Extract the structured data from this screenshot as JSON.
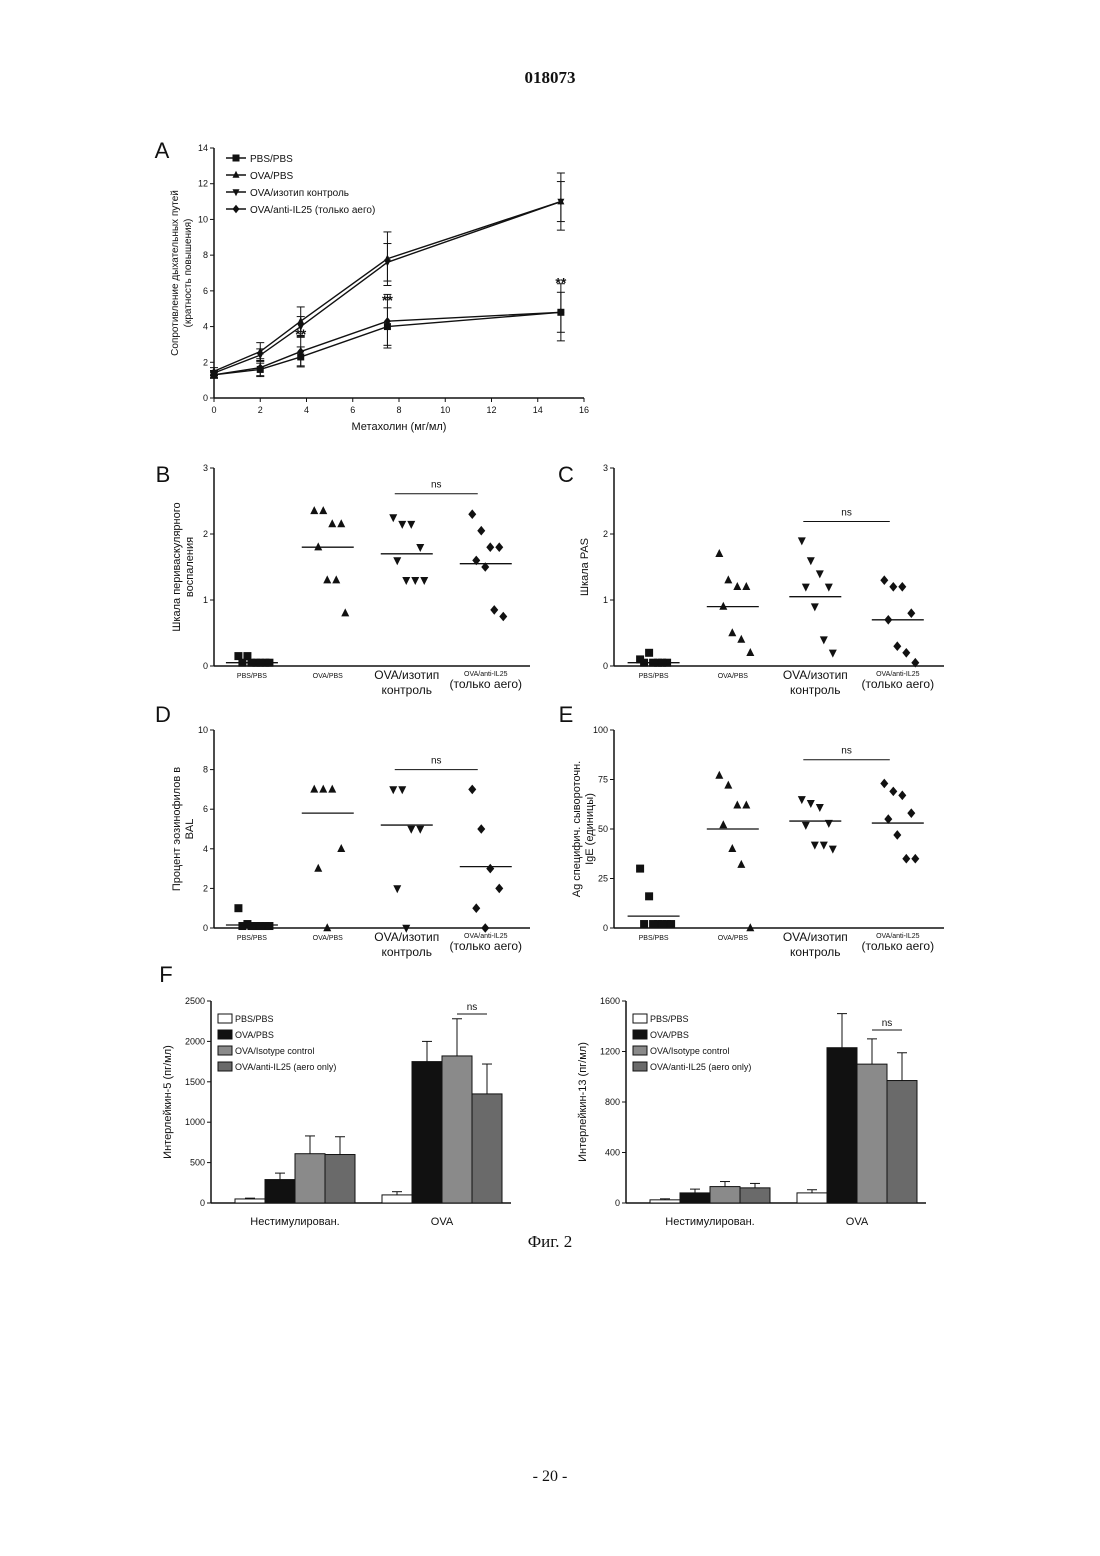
{
  "page": {
    "number": "018073",
    "caption": "Фиг. 2",
    "footer": "- 20 -"
  },
  "chart_data": [
    {
      "panel": "A",
      "type": "line",
      "xlabel": "Метахолин (мг/мл)",
      "ylabel": "Сопротивление дыхательных путей (кратность повышения)",
      "xlim": [
        0,
        16
      ],
      "ylim": [
        0,
        14
      ],
      "xticks": [
        0,
        2,
        4,
        6,
        8,
        10,
        12,
        14,
        16
      ],
      "yticks": [
        0,
        2,
        4,
        6,
        8,
        10,
        12,
        14
      ],
      "legend": "top-left",
      "series": [
        {
          "name": "PBS/PBS",
          "marker": "square",
          "x": [
            0,
            2,
            3.75,
            7.5,
            15
          ],
          "y": [
            1.3,
            1.6,
            2.3,
            4.0,
            4.8
          ]
        },
        {
          "name": "OVA/PBS",
          "marker": "triangle",
          "x": [
            0,
            2,
            3.75,
            7.5,
            15
          ],
          "y": [
            1.5,
            2.6,
            4.3,
            7.8,
            11.0
          ]
        },
        {
          "name": "OVA/изотип контроль",
          "marker": "triangle-down",
          "x": [
            0,
            2,
            3.75,
            7.5,
            15
          ],
          "y": [
            1.4,
            2.4,
            4.0,
            7.6,
            11.0
          ]
        },
        {
          "name": "OVA/anti-IL25 (только аего)",
          "marker": "diamond",
          "x": [
            0,
            2,
            3.75,
            7.5,
            15
          ],
          "y": [
            1.3,
            1.7,
            2.6,
            4.3,
            4.8
          ]
        }
      ],
      "annotations": [
        "**",
        "**",
        "**",
        "**"
      ]
    },
    {
      "panel": "B",
      "type": "scatter",
      "ylabel": "Шкала периваскулярного воспаления",
      "ylim": [
        0,
        3
      ],
      "yticks": [
        0,
        1,
        2,
        3
      ],
      "categories": [
        "PBS/PBS",
        "OVA/PBS",
        "OVA/изотип контроль",
        "OVA/anti-IL25 (только аего)"
      ],
      "points": [
        [
          0.15,
          0.15,
          0.05,
          0.05,
          0.05,
          0.05,
          0.05,
          0.05
        ],
        [
          2.35,
          2.35,
          2.15,
          2.15,
          1.8,
          1.3,
          1.3,
          0.8
        ],
        [
          2.25,
          2.15,
          2.15,
          1.8,
          1.6,
          1.3,
          1.3,
          1.3
        ],
        [
          2.3,
          2.05,
          1.8,
          1.8,
          1.6,
          1.5,
          0.85,
          0.75
        ]
      ],
      "means": [
        0.05,
        1.8,
        1.7,
        1.55
      ],
      "annotation": "ns"
    },
    {
      "panel": "C",
      "type": "scatter",
      "ylabel": "Шкала PAS",
      "ylim": [
        0,
        3
      ],
      "yticks": [
        0,
        1,
        2,
        3
      ],
      "categories": [
        "PBS/PBS",
        "OVA/PBS",
        "OVA/изотип контроль",
        "OVA/anti-IL25 (только аего)"
      ],
      "points": [
        [
          0.1,
          0.2,
          0.05,
          0.05,
          0.05,
          0.05,
          0.05
        ],
        [
          1.7,
          1.3,
          1.2,
          1.2,
          0.9,
          0.5,
          0.4,
          0.2
        ],
        [
          1.9,
          1.6,
          1.4,
          1.2,
          1.2,
          0.9,
          0.4,
          0.2
        ],
        [
          1.3,
          1.2,
          1.2,
          0.8,
          0.7,
          0.3,
          0.2,
          0.05
        ]
      ],
      "means": [
        0.05,
        0.9,
        1.05,
        0.7
      ],
      "annotation": "ns"
    },
    {
      "panel": "D",
      "type": "scatter",
      "ylabel": "Процент эозинофилов в BAL",
      "ylim": [
        0,
        10
      ],
      "yticks": [
        0,
        2,
        4,
        6,
        8,
        10
      ],
      "categories": [
        "PBS/PBS",
        "OVA/PBS",
        "OVA/изотип контроль",
        "OVA/anti-IL25 (только аего)"
      ],
      "points": [
        [
          1.0,
          0.2,
          0.1,
          0.1,
          0.1,
          0.1,
          0.1,
          0.1
        ],
        [
          7,
          7,
          7,
          4,
          3,
          0
        ],
        [
          7,
          7,
          5,
          5,
          2,
          0
        ],
        [
          7,
          5,
          3,
          2,
          1,
          0
        ]
      ],
      "means": [
        0.15,
        5.8,
        5.2,
        3.1
      ],
      "annotation": "ns"
    },
    {
      "panel": "E",
      "type": "scatter",
      "ylabel": "Ag специфич. сывороточн. IgE (единицы)",
      "ylim": [
        0,
        100
      ],
      "yticks": [
        0,
        25,
        50,
        75,
        100
      ],
      "categories": [
        "PBS/PBS",
        "OVA/PBS",
        "OVA/изотип контроль",
        "OVA/anti-IL25 (только аего)"
      ],
      "points": [
        [
          30,
          16,
          2,
          2,
          2,
          2,
          2,
          2
        ],
        [
          77,
          72,
          62,
          62,
          52,
          40,
          32,
          0
        ],
        [
          65,
          63,
          61,
          53,
          52,
          42,
          42,
          40
        ],
        [
          73,
          69,
          67,
          58,
          55,
          47,
          35,
          35
        ]
      ],
      "means": [
        6,
        50,
        54,
        53
      ],
      "annotation": "ns"
    },
    {
      "panel": "F-IL5",
      "type": "bar",
      "ylabel": "Интерлейкин-5 (пг/мл)",
      "ylim": [
        0,
        2500
      ],
      "yticks": [
        0,
        500,
        1000,
        1500,
        2000,
        2500
      ],
      "categories": [
        "Нестимулирован.",
        "OVA"
      ],
      "series": [
        {
          "name": "PBS/PBS",
          "values": [
            50,
            100
          ],
          "errors": [
            10,
            40
          ]
        },
        {
          "name": "OVA/PBS",
          "values": [
            290,
            1750
          ],
          "errors": [
            80,
            250
          ]
        },
        {
          "name": "OVA/Isotype control",
          "values": [
            610,
            1820
          ],
          "errors": [
            220,
            460
          ]
        },
        {
          "name": "OVA/anti-IL25 (aero only)",
          "values": [
            600,
            1350
          ],
          "errors": [
            220,
            370
          ]
        }
      ],
      "annotation": "ns"
    },
    {
      "panel": "F-IL13",
      "type": "bar",
      "ylabel": "Интерлейкин-13 (пг/мл)",
      "ylim": [
        0,
        1600
      ],
      "yticks": [
        0,
        400,
        800,
        1200,
        1600
      ],
      "categories": [
        "Нестимулирован.",
        "OVA"
      ],
      "series": [
        {
          "name": "PBS/PBS",
          "values": [
            25,
            80
          ],
          "errors": [
            8,
            25
          ]
        },
        {
          "name": "OVA/PBS",
          "values": [
            80,
            1230
          ],
          "errors": [
            30,
            270
          ]
        },
        {
          "name": "OVA/Isotype control",
          "values": [
            130,
            1100
          ],
          "errors": [
            40,
            200
          ]
        },
        {
          "name": "OVA/anti-IL25 (aero only)",
          "values": [
            120,
            970
          ],
          "errors": [
            35,
            220
          ]
        }
      ],
      "annotation": "ns"
    }
  ],
  "panelLabels": {
    "A": "A",
    "B": "B",
    "C": "C",
    "D": "D",
    "E": "E",
    "F": "F"
  },
  "catLabels": {
    "pbs": "PBS/PBS",
    "ova": "OVA/PBS",
    "iso1": "OVA/изотип",
    "iso2": "контроль",
    "anti1": "OVA/anti-IL25",
    "anti2": "(только аего)"
  }
}
